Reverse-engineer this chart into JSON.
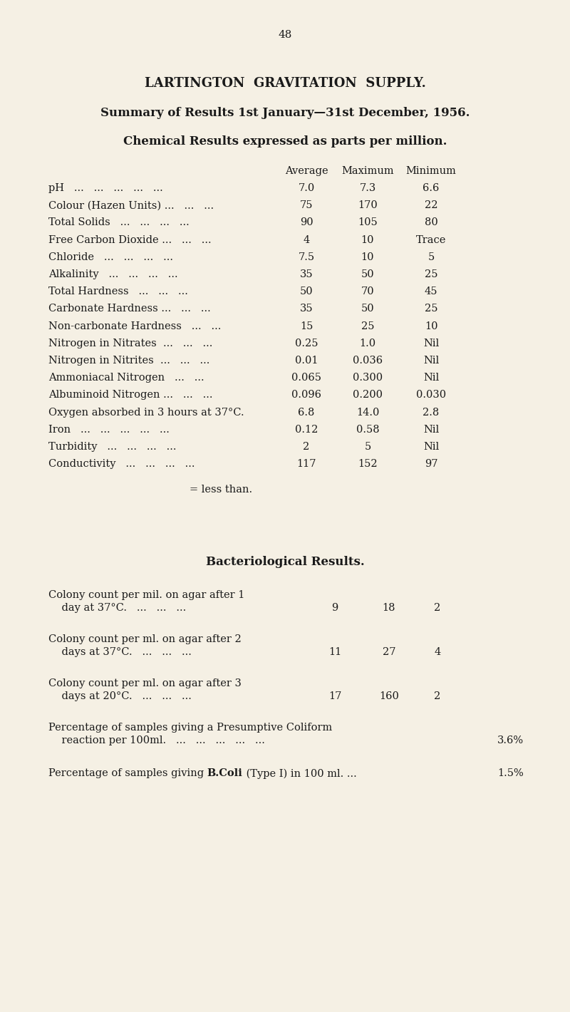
{
  "bg_color": "#f5f0e4",
  "text_color": "#1a1a1a",
  "page_number": "48",
  "title1": "LARTINGTON  GRAVITATION  SUPPLY.",
  "title2": "Summary of Results 1st January—31st December, 1956.",
  "title3": "Chemical Results expressed as parts per million.",
  "col_headers": [
    "Average",
    "Maximum",
    "Minimum"
  ],
  "chemical_rows": [
    {
      "label": "pH   ...   ...   ...   ...   ...",
      "avg": "7.0",
      "max": "7.3",
      "min": "6.6"
    },
    {
      "label": "Colour (Hazen Units) ...   ...   ...",
      "avg": "75",
      "max": "170",
      "min": "22"
    },
    {
      "label": "Total Solids   ...   ...   ...   ...",
      "avg": "90",
      "max": "105",
      "min": "80"
    },
    {
      "label": "Free Carbon Dioxide ...   ...   ...",
      "avg": "4",
      "max": "10",
      "min": "Trace"
    },
    {
      "label": "Chloride   ...   ...   ...   ...",
      "avg": "7.5",
      "max": "10",
      "min": "5"
    },
    {
      "label": "Alkalinity   ...   ...   ...   ...",
      "avg": "35",
      "max": "50",
      "min": "25"
    },
    {
      "label": "Total Hardness   ...   ...   ...",
      "avg": "50",
      "max": "70",
      "min": "45"
    },
    {
      "label": "Carbonate Hardness ...   ...   ...",
      "avg": "35",
      "max": "50",
      "min": "25"
    },
    {
      "label": "Non-carbonate Hardness   ...   ...",
      "avg": "15",
      "max": "25",
      "min": "10"
    },
    {
      "label": "Nitrogen in Nitrates  ...   ...   ...",
      "avg": "0.25",
      "max": "1.0",
      "min": "Nil"
    },
    {
      "label": "Nitrogen in Nitrites  ...   ...   ...",
      "avg": "0.01",
      "max": "0.036",
      "min": "Nil"
    },
    {
      "label": "Ammoniacal Nitrogen   ...   ...",
      "avg": "0.065",
      "max": "0.300",
      "min": "Nil"
    },
    {
      "label": "Albuminoid Nitrogen ...   ...   ...",
      "avg": "0.096",
      "max": "0.200",
      "min": "0.030"
    },
    {
      "label": "Oxygen absorbed in 3 hours at 37°C.",
      "avg": "6.8",
      "max": "14.0",
      "min": "2.8"
    },
    {
      "label": "Iron   ...   ...   ...   ...   ...",
      "avg": "0.12",
      "max": "0.58",
      "min": "Nil"
    },
    {
      "label": "Turbidity   ...   ...   ...   ...",
      "avg": "2",
      "max": "5",
      "min": "Nil"
    },
    {
      "label": "Conductivity   ...   ...   ...   ...",
      "avg": "117",
      "max": "152",
      "min": "97"
    }
  ],
  "less_than_note": "= less than.",
  "bact_title": "Bacteriological Results.",
  "bact_rows": [
    {
      "label_line1": "Colony count per mil. on agar after 1",
      "label_line2": "    day at 37°C.   ...   ...   ...",
      "avg": "9",
      "max": "18",
      "min": "2"
    },
    {
      "label_line1": "Colony count per ml. on agar after 2",
      "label_line2": "    days at 37°C.   ...   ...   ...",
      "avg": "11",
      "max": "27",
      "min": "4"
    },
    {
      "label_line1": "Colony count per ml. on agar after 3",
      "label_line2": "    days at 20°C.   ...   ...   ...",
      "avg": "17",
      "max": "160",
      "min": "2"
    }
  ],
  "pct_coliform_line1": "Percentage of samples giving a Presumptive Coliform",
  "pct_coliform_line2": "    reaction per 100ml.   ...   ...   ...   ...   ...",
  "pct_coliform_val": "3.6%",
  "pct_bcoli_pre": "Percentage of samples giving ",
  "pct_bcoli_bold": "B.Coli",
  "pct_bcoli_post": " (Type I) in 100 ml. ...",
  "pct_bcoli_val": "1.5%",
  "fig_w": 8.0,
  "fig_h": 14.2,
  "dpi": 100
}
